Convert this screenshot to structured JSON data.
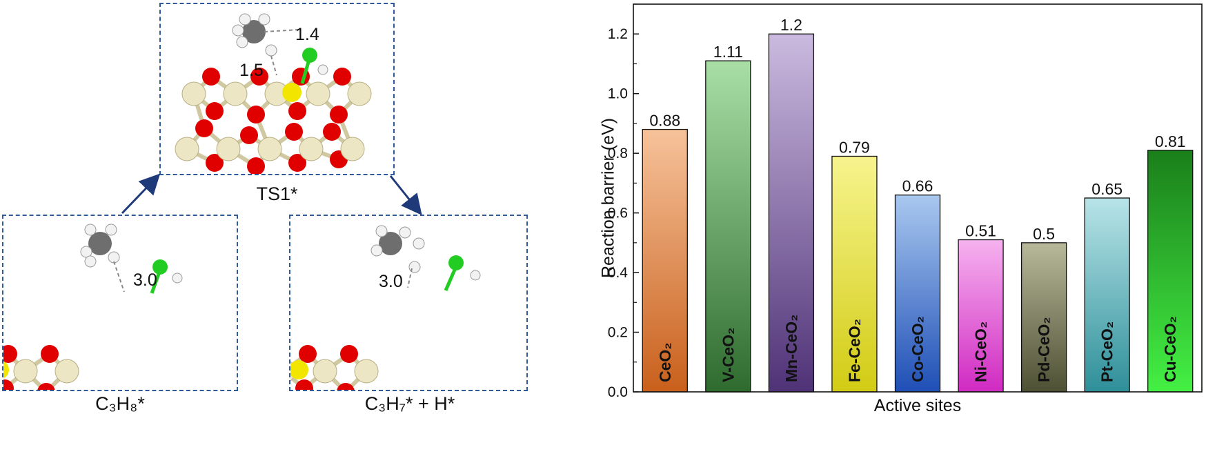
{
  "schematic": {
    "states": [
      {
        "label": "C₃H₈*",
        "distances": [
          "3.0"
        ]
      },
      {
        "label": "TS1*",
        "distances": [
          "1.4",
          "1.5"
        ]
      },
      {
        "label": "C₃H₇* + H*",
        "distances": [
          "3.0"
        ]
      }
    ],
    "colors": {
      "panel_border": "#2e5a9b",
      "arrow": "#1f3a78",
      "oxygen": "#e00000",
      "cerium": "#ece6c4",
      "dopant": "#f2e600",
      "chlorine": "#22cc22",
      "carbon": "#6e6e6e",
      "hydrogen": "#f2f2f2"
    }
  },
  "chart_data": {
    "type": "bar",
    "categories": [
      "CeO₂",
      "V-CeO₂",
      "Mn-CeO₂",
      "Fe-CeO₂",
      "Co-CeO₂",
      "Ni-CeO₂",
      "Pd-CeO₂",
      "Pt-CeO₂",
      "Cu-CeO₂"
    ],
    "values": [
      0.88,
      1.11,
      1.2,
      0.79,
      0.66,
      0.51,
      0.5,
      0.65,
      0.81
    ],
    "value_labels": [
      "0.88",
      "1.11",
      "1.2",
      "0.79",
      "0.66",
      "0.51",
      "0.5",
      "0.65",
      "0.81"
    ],
    "title": "",
    "xlabel": "Active sites",
    "ylabel": "Reaction barrier (eV)",
    "ylim": [
      0.0,
      1.3
    ],
    "yticks": [
      "0.0",
      "0.2",
      "0.4",
      "0.6",
      "0.8",
      "1.0",
      "1.2"
    ],
    "grid": false,
    "bar_colors": [
      [
        "#f6c29a",
        "#c9601c"
      ],
      [
        "#a9dfa6",
        "#2e6b2e"
      ],
      [
        "#cbbadf",
        "#4f3277"
      ],
      [
        "#f7f48e",
        "#d2cc14"
      ],
      [
        "#a9c8ef",
        "#1f4fb6"
      ],
      [
        "#f6b2ef",
        "#d02ac2"
      ],
      [
        "#b8b89a",
        "#4e5034"
      ],
      [
        "#b8e4e8",
        "#2e8f99"
      ],
      [
        "#1a7f1a",
        "#44f044"
      ]
    ]
  }
}
